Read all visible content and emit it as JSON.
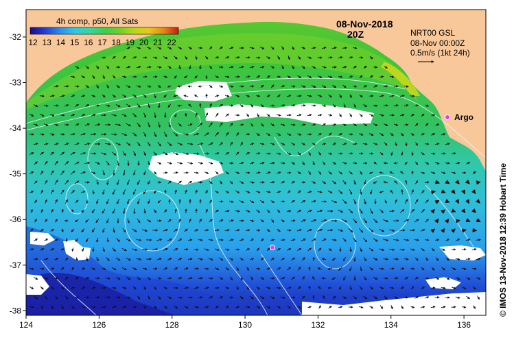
{
  "map": {
    "title_date": "08-Nov-2018",
    "title_time": "20Z",
    "colorbar": {
      "title": "4h comp, p50, All Sats",
      "ticks": [
        "12",
        "13",
        "14",
        "15",
        "16",
        "17",
        "18",
        "19",
        "20",
        "21",
        "22"
      ],
      "colors": [
        "#1a0a8c",
        "#1f3fd6",
        "#2a8cf0",
        "#2fc8e8",
        "#35d6a0",
        "#39d050",
        "#6ad22a",
        "#b8d818",
        "#e6c81a",
        "#e6861a",
        "#c81a1a"
      ]
    },
    "current_info": {
      "line1": "NRT00 GSL",
      "line2": "08-Nov 00:00Z",
      "line3": "0.5m/s (1kt 24h)"
    },
    "argo_label": "Argo",
    "x_ticks": [
      "124",
      "126",
      "128",
      "130",
      "132",
      "134",
      "136"
    ],
    "y_ticks": [
      "-32",
      "-33",
      "-34",
      "-35",
      "-36",
      "-37",
      "-38"
    ],
    "lon_range": [
      124,
      136.6
    ],
    "lat_range": [
      -38.1,
      -31.4
    ],
    "credit": "© IMOS 13-Nov-2018 12:39 Hobart Time",
    "colors": {
      "land": "#f8c89a",
      "cloud": "#ffffff",
      "argo": "#e040e0",
      "contour": "#e8f4ff",
      "arrow": "#101010",
      "arrow_red": "#e01818"
    }
  }
}
